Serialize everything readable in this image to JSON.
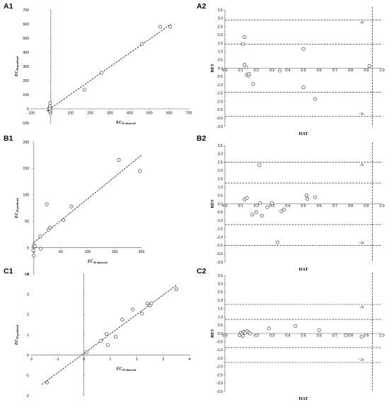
{
  "chart_data": [
    {
      "panel": "A1",
      "type": "scatter",
      "xlabel_main": "EC",
      "xlabel_sub": "50 observed",
      "ylabel_main": "EC",
      "ylabel_sub": "50 predicted",
      "xlim": [
        -100,
        700
      ],
      "ylim": [
        -100,
        700
      ],
      "xticks": [
        -100,
        0,
        100,
        200,
        300,
        400,
        500,
        600,
        700
      ],
      "yticks": [
        -100,
        0,
        100,
        200,
        300,
        400,
        500,
        600,
        700
      ],
      "points": [
        [
          -8,
          5
        ],
        [
          -5,
          20
        ],
        [
          -3,
          42
        ],
        [
          -6,
          -12
        ],
        [
          -2,
          -30
        ],
        [
          -4,
          -18
        ],
        [
          -1,
          -8
        ],
        [
          -6,
          2
        ],
        [
          170,
          135
        ],
        [
          258,
          255
        ],
        [
          462,
          460
        ],
        [
          555,
          580
        ],
        [
          605,
          580
        ]
      ],
      "fit_line": [
        [
          -20,
          -15
        ],
        [
          610,
          600
        ]
      ]
    },
    {
      "panel": "A2",
      "type": "scatter",
      "xlabel": "HAT",
      "ylabel": "RES",
      "xlim": [
        0,
        1.0
      ],
      "ylim": [
        -3.5,
        3.5
      ],
      "xticks": [
        0,
        0.1,
        0.2,
        0.3,
        0.4,
        0.5,
        0.6,
        0.7,
        0.8,
        0.9,
        1.0
      ],
      "yticks": [
        -3.5,
        -3.0,
        -2.5,
        -2.0,
        -1.5,
        -1.0,
        -0.5,
        0.0,
        0.5,
        1.0,
        1.5,
        2.0,
        2.5,
        3.0,
        3.5
      ],
      "hlines": [
        2.9,
        1.45,
        -1.45,
        -2.9
      ],
      "vline": 0.94,
      "sigma_labels": [
        "2σ",
        "−2σ"
      ],
      "points": [
        [
          0.115,
          1.45
        ],
        [
          0.125,
          1.87
        ],
        [
          0.125,
          0.2
        ],
        [
          0.135,
          0.05
        ],
        [
          0.14,
          -0.4
        ],
        [
          0.15,
          -0.45
        ],
        [
          0.155,
          -0.35
        ],
        [
          0.18,
          -0.95
        ],
        [
          0.35,
          -0.15
        ],
        [
          0.5,
          1.15
        ],
        [
          0.5,
          -1.15
        ],
        [
          0.575,
          -1.85
        ],
        [
          0.92,
          0.12
        ]
      ]
    },
    {
      "panel": "B1",
      "type": "scatter",
      "xlabel_main": "EC",
      "xlabel_sub": "50 observed",
      "ylabel_main": "EC",
      "ylabel_sub": "50 predicted",
      "xlim": [
        -5,
        200
      ],
      "ylim": [
        -50,
        200
      ],
      "xticks": [
        0,
        50,
        100,
        150,
        200
      ],
      "yticks": [
        -50,
        0,
        50,
        100,
        150,
        200
      ],
      "points": [
        [
          0,
          -15
        ],
        [
          -1,
          -5
        ],
        [
          0,
          5
        ],
        [
          1,
          2
        ],
        [
          2,
          3
        ],
        [
          12,
          21
        ],
        [
          13,
          -2
        ],
        [
          24,
          82
        ],
        [
          27,
          34
        ],
        [
          30,
          38
        ],
        [
          55,
          52
        ],
        [
          70,
          78
        ],
        [
          158,
          166
        ],
        [
          197,
          145
        ]
      ],
      "fit_line": [
        [
          0,
          10
        ],
        [
          200,
          175
        ]
      ]
    },
    {
      "panel": "B2",
      "type": "scatter",
      "xlabel": "HAT",
      "ylabel": "RES",
      "xlim": [
        0,
        1.0
      ],
      "ylim": [
        -3.5,
        3.5
      ],
      "xticks": [
        0,
        0.1,
        0.2,
        0.3,
        0.4,
        0.5,
        0.6,
        0.7,
        0.8,
        0.9,
        1.0
      ],
      "yticks": [
        -3.5,
        -3.0,
        -2.5,
        -2.0,
        -1.5,
        -1.0,
        -0.5,
        0.0,
        0.5,
        1.0,
        1.5,
        2.0,
        2.5,
        3.0,
        3.5
      ],
      "hlines": [
        2.5,
        1.25,
        -1.25,
        -2.5
      ],
      "vline": 0.94,
      "sigma_labels": [
        "2σ",
        "−2σ"
      ],
      "points": [
        [
          0.125,
          0.25
        ],
        [
          0.14,
          0.35
        ],
        [
          0.175,
          -0.65
        ],
        [
          0.2,
          -0.5
        ],
        [
          0.22,
          2.32
        ],
        [
          0.225,
          0.05
        ],
        [
          0.235,
          -0.72
        ],
        [
          0.27,
          -0.2
        ],
        [
          0.3,
          0.05
        ],
        [
          0.335,
          -2.32
        ],
        [
          0.36,
          -0.45
        ],
        [
          0.375,
          -0.35
        ],
        [
          0.52,
          0.5
        ],
        [
          0.525,
          0.3
        ],
        [
          0.575,
          0.4
        ]
      ]
    },
    {
      "panel": "C1",
      "type": "scatter",
      "xlabel_main": "EC",
      "xlabel_sub": "50 observed",
      "ylabel_main": "EC",
      "ylabel_sub": "50 predicted",
      "xlim": [
        -2,
        4
      ],
      "ylim": [
        -2,
        4
      ],
      "xticks": [
        -2,
        -1,
        0,
        1,
        2,
        3,
        4
      ],
      "yticks": [
        -2,
        -1,
        0,
        1,
        2,
        3,
        4
      ],
      "points": [
        [
          -1.4,
          -1.35
        ],
        [
          0.1,
          0.15
        ],
        [
          0.65,
          0.7
        ],
        [
          0.85,
          1.05
        ],
        [
          0.9,
          0.5
        ],
        [
          1.2,
          0.9
        ],
        [
          1.45,
          1.75
        ],
        [
          1.85,
          2.25
        ],
        [
          2.2,
          2.05
        ],
        [
          2.4,
          2.55
        ],
        [
          2.5,
          2.45
        ],
        [
          2.55,
          2.55
        ],
        [
          3.5,
          3.25
        ]
      ],
      "fit_line": [
        [
          -1.6,
          -1.45
        ],
        [
          3.5,
          3.45
        ]
      ]
    },
    {
      "panel": "C2",
      "type": "scatter",
      "xlabel": "HAT",
      "ylabel": "RES",
      "xlim": [
        0,
        1.0
      ],
      "ylim": [
        -3.5,
        3.5
      ],
      "xticks": [
        0,
        0.1,
        0.2,
        0.3,
        0.4,
        0.5,
        0.6,
        0.7,
        0.8,
        0.9,
        1.0
      ],
      "yticks": [
        -3.5,
        -3.0,
        -2.5,
        -2.0,
        -1.5,
        -1.0,
        -0.5,
        0.0,
        0.5,
        1.0,
        1.5,
        2.0,
        2.5,
        3.0,
        3.5
      ],
      "hlines": [
        1.75,
        0.85,
        -0.85,
        -1.75
      ],
      "vline": 0.94,
      "sigma_labels": [
        "2σ",
        "−2σ"
      ],
      "points": [
        [
          0.095,
          -0.1
        ],
        [
          0.1,
          0.05
        ],
        [
          0.11,
          -0.05
        ],
        [
          0.115,
          -0.15
        ],
        [
          0.12,
          0.1
        ],
        [
          0.13,
          0.05
        ],
        [
          0.14,
          0.15
        ],
        [
          0.15,
          0.05
        ],
        [
          0.16,
          0.0
        ],
        [
          0.28,
          0.3
        ],
        [
          0.45,
          0.45
        ],
        [
          0.6,
          0.2
        ],
        [
          0.77,
          -0.1
        ],
        [
          0.87,
          -0.2
        ]
      ]
    }
  ]
}
